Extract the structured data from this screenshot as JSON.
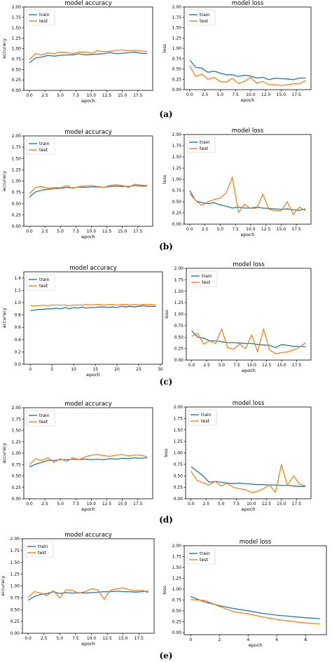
{
  "colors": {
    "train": "#1f77b4",
    "test": "#ff7f0e",
    "axis": "#000000"
  },
  "panels": [
    {
      "label": "(a)",
      "accuracy": {
        "title": "model accuracy",
        "xlabel": "epoch",
        "ylabel": "accuracy",
        "xlim": [
          -0.9,
          19.9
        ],
        "ylim": [
          0,
          2.0
        ],
        "xticks": [
          "0.0",
          "2.5",
          "5.0",
          "7.5",
          "10.0",
          "12.5",
          "15.0",
          "17.5"
        ],
        "xtick_vals": [
          0,
          2.5,
          5,
          7.5,
          10,
          12.5,
          15,
          17.5
        ],
        "yticks": [
          "0.00",
          "0.25",
          "0.50",
          "0.75",
          "1.00",
          "1.25",
          "1.50",
          "1.75",
          "2.00"
        ],
        "ytick_vals": [
          0,
          0.25,
          0.5,
          0.75,
          1.0,
          1.25,
          1.5,
          1.75,
          2.0
        ],
        "legend": [
          "train",
          "test"
        ],
        "x": [
          0,
          1,
          2,
          3,
          4,
          5,
          6,
          7,
          8,
          9,
          10,
          11,
          12,
          13,
          14,
          15,
          16,
          17,
          18,
          19
        ],
        "train": [
          0.66,
          0.78,
          0.8,
          0.84,
          0.82,
          0.84,
          0.85,
          0.85,
          0.88,
          0.85,
          0.86,
          0.87,
          0.88,
          0.91,
          0.88,
          0.89,
          0.9,
          0.92,
          0.89,
          0.88
        ],
        "test": [
          0.74,
          0.88,
          0.85,
          0.9,
          0.88,
          0.92,
          0.91,
          0.88,
          0.92,
          0.92,
          0.89,
          0.95,
          0.93,
          0.94,
          0.96,
          0.97,
          0.95,
          0.96,
          0.95,
          0.93
        ]
      },
      "loss": {
        "title": "model loss",
        "xlabel": "epoch",
        "ylabel": "loss",
        "xlim": [
          -0.9,
          19.9
        ],
        "ylim": [
          0,
          2.0
        ],
        "xticks": [
          "0.0",
          "2.5",
          "5.0",
          "7.5",
          "10.0",
          "12.5",
          "15.0",
          "17.5"
        ],
        "xtick_vals": [
          0,
          2.5,
          5,
          7.5,
          10,
          12.5,
          15,
          17.5
        ],
        "yticks": [
          "0.00",
          "0.25",
          "0.50",
          "0.75",
          "1.00",
          "1.25",
          "1.50",
          "1.75",
          "2.00"
        ],
        "ytick_vals": [
          0,
          0.25,
          0.5,
          0.75,
          1.0,
          1.25,
          1.5,
          1.75,
          2.0
        ],
        "legend": [
          "train",
          "test"
        ],
        "x": [
          0,
          1,
          2,
          3,
          4,
          5,
          6,
          7,
          8,
          9,
          10,
          11,
          12,
          13,
          14,
          15,
          16,
          17,
          18,
          19
        ],
        "train": [
          0.72,
          0.54,
          0.52,
          0.42,
          0.45,
          0.4,
          0.36,
          0.36,
          0.32,
          0.35,
          0.33,
          0.28,
          0.3,
          0.24,
          0.28,
          0.27,
          0.26,
          0.24,
          0.28,
          0.28
        ],
        "test": [
          0.58,
          0.32,
          0.38,
          0.25,
          0.3,
          0.2,
          0.18,
          0.28,
          0.15,
          0.2,
          0.3,
          0.16,
          0.2,
          0.12,
          0.12,
          0.1,
          0.12,
          0.14,
          0.14,
          0.22
        ]
      }
    },
    {
      "label": "(b)",
      "accuracy": {
        "title": "model accuracy",
        "xlabel": "epoch",
        "ylabel": "accuracy",
        "xlim": [
          -0.9,
          19.9
        ],
        "ylim": [
          0,
          2.0
        ],
        "xticks": [
          "0.0",
          "2.5",
          "5.0",
          "7.5",
          "10.0",
          "12.5",
          "15.0",
          "17.5"
        ],
        "xtick_vals": [
          0,
          2.5,
          5,
          7.5,
          10,
          12.5,
          15,
          17.5
        ],
        "yticks": [
          "0.00",
          "0.25",
          "0.50",
          "0.75",
          "1.00",
          "1.25",
          "1.50",
          "1.75",
          "2.00"
        ],
        "ytick_vals": [
          0,
          0.25,
          0.5,
          0.75,
          1.0,
          1.25,
          1.5,
          1.75,
          2.0
        ],
        "legend": [
          "train",
          "test"
        ],
        "x": [
          0,
          1,
          2,
          3,
          4,
          5,
          6,
          7,
          8,
          9,
          10,
          11,
          12,
          13,
          14,
          15,
          16,
          17,
          18,
          19
        ],
        "train": [
          0.65,
          0.76,
          0.8,
          0.82,
          0.83,
          0.84,
          0.86,
          0.85,
          0.87,
          0.86,
          0.87,
          0.87,
          0.86,
          0.88,
          0.89,
          0.88,
          0.88,
          0.9,
          0.89,
          0.89
        ],
        "test": [
          0.72,
          0.86,
          0.88,
          0.84,
          0.86,
          0.85,
          0.9,
          0.84,
          0.88,
          0.89,
          0.9,
          0.88,
          0.86,
          0.9,
          0.92,
          0.9,
          0.86,
          0.93,
          0.91,
          0.9
        ]
      },
      "loss": {
        "title": "model loss",
        "xlabel": "epoch",
        "ylabel": "loss",
        "xlim": [
          -0.9,
          19.9
        ],
        "ylim": [
          0,
          2.0
        ],
        "xticks": [
          "0.0",
          "2.5",
          "5.0",
          "7.5",
          "10.0",
          "12.5",
          "15.0",
          "17.5"
        ],
        "xtick_vals": [
          0,
          2.5,
          5,
          7.5,
          10,
          12.5,
          15,
          17.5
        ],
        "yticks": [
          "0.00",
          "0.25",
          "0.50",
          "0.75",
          "1.00",
          "1.25",
          "1.50",
          "1.75",
          "2.00"
        ],
        "ytick_vals": [
          0,
          0.25,
          0.5,
          0.75,
          1.0,
          1.25,
          1.5,
          1.75,
          2.0
        ],
        "legend": [
          "train",
          "test"
        ],
        "x": [
          0,
          1,
          2,
          3,
          4,
          5,
          6,
          7,
          8,
          9,
          10,
          11,
          12,
          13,
          14,
          15,
          16,
          17,
          18,
          19
        ],
        "train": [
          0.75,
          0.52,
          0.48,
          0.46,
          0.48,
          0.43,
          0.4,
          0.36,
          0.38,
          0.36,
          0.36,
          0.38,
          0.36,
          0.35,
          0.34,
          0.33,
          0.34,
          0.32,
          0.31,
          0.34
        ],
        "test": [
          0.68,
          0.53,
          0.42,
          0.5,
          0.55,
          0.58,
          0.7,
          1.05,
          0.26,
          0.44,
          0.35,
          0.36,
          0.67,
          0.33,
          0.3,
          0.3,
          0.5,
          0.22,
          0.38,
          0.3
        ]
      }
    },
    {
      "label": "(c)",
      "accuracy": {
        "title": "model accuracy",
        "xlabel": "epoch",
        "ylabel": "accuracy",
        "xlim": [
          -1.5,
          30.5
        ],
        "ylim": [
          0,
          1.5
        ],
        "xticks": [
          "0",
          "5",
          "10",
          "15",
          "20",
          "25",
          "30"
        ],
        "xtick_vals": [
          0,
          5,
          10,
          15,
          20,
          25,
          30
        ],
        "yticks": [
          "0.0",
          "0.2",
          "0.4",
          "0.6",
          "0.8",
          "1.0",
          "1.2",
          "1.4"
        ],
        "ytick_vals": [
          0,
          0.2,
          0.4,
          0.6,
          0.8,
          1.0,
          1.2,
          1.4
        ],
        "legend": [
          "train",
          "test"
        ],
        "x": [
          0,
          1,
          2,
          3,
          4,
          5,
          6,
          7,
          8,
          9,
          10,
          11,
          12,
          13,
          14,
          15,
          16,
          17,
          18,
          19,
          20,
          21,
          22,
          23,
          24,
          25,
          26,
          27,
          28,
          29
        ],
        "train": [
          0.87,
          0.88,
          0.89,
          0.89,
          0.9,
          0.9,
          0.91,
          0.9,
          0.92,
          0.9,
          0.92,
          0.91,
          0.93,
          0.91,
          0.92,
          0.92,
          0.93,
          0.93,
          0.92,
          0.93,
          0.92,
          0.94,
          0.93,
          0.94,
          0.93,
          0.94,
          0.95,
          0.94,
          0.94,
          0.94
        ],
        "test": [
          0.95,
          0.95,
          0.95,
          0.96,
          0.95,
          0.96,
          0.96,
          0.96,
          0.96,
          0.95,
          0.96,
          0.96,
          0.96,
          0.97,
          0.96,
          0.97,
          0.97,
          0.96,
          0.97,
          0.97,
          0.96,
          0.97,
          0.97,
          0.96,
          0.97,
          0.96,
          0.97,
          0.97,
          0.97,
          0.96
        ]
      },
      "loss": {
        "title": "model loss",
        "xlabel": "epoch",
        "ylabel": "loss",
        "xlim": [
          -0.9,
          19.9
        ],
        "ylim": [
          0,
          2.0
        ],
        "xticks": [
          "0.0",
          "2.5",
          "5.0",
          "7.5",
          "10.0",
          "12.5",
          "15.0",
          "17.5"
        ],
        "xtick_vals": [
          0,
          2.5,
          5,
          7.5,
          10,
          12.5,
          15,
          17.5
        ],
        "yticks": [
          "0.00",
          "0.25",
          "0.50",
          "0.75",
          "1.00",
          "1.25",
          "1.50",
          "1.75",
          "2.00"
        ],
        "ytick_vals": [
          0,
          0.25,
          0.5,
          0.75,
          1.0,
          1.25,
          1.5,
          1.75,
          2.0
        ],
        "legend": [
          "train",
          "test"
        ],
        "x": [
          0,
          1,
          2,
          3,
          4,
          5,
          6,
          7,
          8,
          9,
          10,
          11,
          12,
          13,
          14,
          15,
          16,
          17,
          18,
          19
        ],
        "train": [
          0.64,
          0.5,
          0.48,
          0.42,
          0.42,
          0.4,
          0.38,
          0.38,
          0.37,
          0.36,
          0.36,
          0.34,
          0.33,
          0.32,
          0.27,
          0.34,
          0.32,
          0.3,
          0.3,
          0.29
        ],
        "test": [
          0.52,
          0.58,
          0.35,
          0.42,
          0.36,
          0.68,
          0.27,
          0.24,
          0.35,
          0.25,
          0.55,
          0.18,
          0.68,
          0.22,
          0.14,
          0.16,
          0.18,
          0.22,
          0.28,
          0.38
        ]
      }
    },
    {
      "label": "(d)",
      "accuracy": {
        "title": "model accuracy",
        "xlabel": "epoch",
        "ylabel": "accuracy",
        "xlim": [
          -0.9,
          19.9
        ],
        "ylim": [
          0,
          2.0
        ],
        "xticks": [
          "0.0",
          "2.5",
          "5.0",
          "7.5",
          "10.0",
          "12.5",
          "15.0",
          "17.5"
        ],
        "xtick_vals": [
          0,
          2.5,
          5,
          7.5,
          10,
          12.5,
          15,
          17.5
        ],
        "yticks": [
          "0.00",
          "0.25",
          "0.50",
          "0.75",
          "1.00",
          "1.25",
          "1.50",
          "1.75",
          "2.00"
        ],
        "ytick_vals": [
          0,
          0.25,
          0.5,
          0.75,
          1.0,
          1.25,
          1.5,
          1.75,
          2.0
        ],
        "legend": [
          "train",
          "test"
        ],
        "x": [
          0,
          1,
          2,
          3,
          4,
          5,
          6,
          7,
          8,
          9,
          10,
          11,
          12,
          13,
          14,
          15,
          16,
          17,
          18,
          19
        ],
        "train": [
          0.7,
          0.76,
          0.8,
          0.84,
          0.84,
          0.86,
          0.86,
          0.87,
          0.86,
          0.87,
          0.86,
          0.87,
          0.86,
          0.88,
          0.87,
          0.89,
          0.88,
          0.9,
          0.89,
          0.9
        ],
        "test": [
          0.75,
          0.88,
          0.84,
          0.9,
          0.8,
          0.88,
          0.82,
          0.9,
          0.86,
          0.92,
          0.96,
          0.97,
          0.95,
          0.93,
          0.96,
          0.97,
          0.94,
          0.96,
          0.96,
          0.92
        ]
      },
      "loss": {
        "title": "model loss",
        "xlabel": "epoch",
        "ylabel": "loss",
        "xlim": [
          -0.9,
          19.9
        ],
        "ylim": [
          0,
          2.0
        ],
        "xticks": [
          "0.0",
          "2.5",
          "5.0",
          "7.5",
          "10.0",
          "12.5",
          "15.0",
          "17.5"
        ],
        "xtick_vals": [
          0,
          2.5,
          5,
          7.5,
          10,
          12.5,
          15,
          17.5
        ],
        "yticks": [
          "0.00",
          "0.25",
          "0.50",
          "0.75",
          "1.00",
          "1.25",
          "1.50",
          "1.75",
          "2.00"
        ],
        "ytick_vals": [
          0,
          0.25,
          0.5,
          0.75,
          1.0,
          1.25,
          1.5,
          1.75,
          2.0
        ],
        "legend": [
          "train",
          "test"
        ],
        "x": [
          0,
          1,
          2,
          3,
          4,
          5,
          6,
          7,
          8,
          9,
          10,
          11,
          12,
          13,
          14,
          15,
          16,
          17,
          18,
          19
        ],
        "train": [
          0.7,
          0.6,
          0.5,
          0.36,
          0.38,
          0.36,
          0.34,
          0.33,
          0.34,
          0.33,
          0.32,
          0.31,
          0.31,
          0.3,
          0.3,
          0.29,
          0.29,
          0.28,
          0.27,
          0.27
        ],
        "test": [
          0.6,
          0.4,
          0.35,
          0.3,
          0.38,
          0.28,
          0.34,
          0.25,
          0.22,
          0.2,
          0.14,
          0.16,
          0.22,
          0.3,
          0.14,
          0.74,
          0.3,
          0.5,
          0.32,
          0.28
        ]
      }
    },
    {
      "label": "(e)",
      "accuracy": {
        "title": "model accuracy",
        "xlabel": "epoch",
        "ylabel": "accuracy",
        "xlim": [
          -0.9,
          19.9
        ],
        "ylim": [
          0,
          2.0
        ],
        "xticks": [
          "0.0",
          "2.5",
          "5.0",
          "7.5",
          "10.0",
          "12.5",
          "15.0",
          "17.5"
        ],
        "xtick_vals": [
          0,
          2.5,
          5,
          7.5,
          10,
          12.5,
          15,
          17.5
        ],
        "yticks": [
          "0.00",
          "0.25",
          "0.50",
          "0.75",
          "1.00",
          "1.25",
          "1.50",
          "1.75",
          "2.00"
        ],
        "ytick_vals": [
          0,
          0.25,
          0.5,
          0.75,
          1.0,
          1.25,
          1.5,
          1.75,
          2.0
        ],
        "legend": [
          "train",
          "test"
        ],
        "x": [
          0,
          1,
          2,
          3,
          4,
          5,
          6,
          7,
          8,
          9,
          10,
          11,
          12,
          13,
          14,
          15,
          16,
          17,
          18,
          19
        ],
        "train": [
          0.7,
          0.78,
          0.82,
          0.84,
          0.88,
          0.84,
          0.86,
          0.85,
          0.86,
          0.85,
          0.86,
          0.87,
          0.88,
          0.88,
          0.89,
          0.88,
          0.88,
          0.87,
          0.88,
          0.89
        ],
        "test": [
          0.76,
          0.88,
          0.85,
          0.8,
          0.9,
          0.75,
          0.92,
          0.91,
          0.85,
          0.88,
          0.94,
          0.92,
          0.72,
          0.91,
          0.94,
          0.96,
          0.92,
          0.9,
          0.91,
          0.86
        ]
      },
      "loss": {
        "title": "model loss",
        "xlabel": "epoch",
        "ylabel": "loss",
        "xlim": [
          -0.45,
          9.45
        ],
        "ylim": [
          -0.05,
          2.0
        ],
        "xticks": [
          "0",
          "2",
          "4",
          "6",
          "8"
        ],
        "xtick_vals": [
          0,
          2,
          4,
          6,
          8
        ],
        "yticks": [
          "0.00",
          "0.25",
          "0.50",
          "0.75",
          "1.00",
          "1.25",
          "1.50",
          "1.75",
          "2.00"
        ],
        "ytick_vals": [
          0,
          0.25,
          0.5,
          0.75,
          1.0,
          1.25,
          1.5,
          1.75,
          2.0
        ],
        "legend": [
          "train",
          "test"
        ],
        "x": [
          0,
          1,
          2,
          3,
          4,
          5,
          6,
          7,
          8,
          9
        ],
        "train": [
          0.83,
          0.7,
          0.62,
          0.55,
          0.5,
          0.44,
          0.4,
          0.37,
          0.34,
          0.32
        ],
        "test": [
          0.76,
          0.74,
          0.6,
          0.48,
          0.43,
          0.36,
          0.3,
          0.26,
          0.22,
          0.2
        ]
      }
    }
  ]
}
